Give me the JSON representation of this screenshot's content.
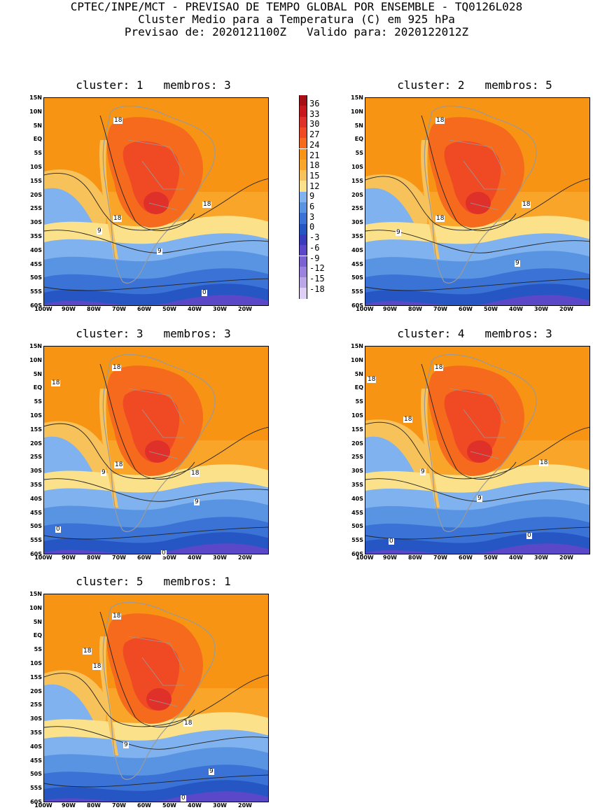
{
  "header": {
    "line1": "CPTEC/INPE/MCT - PREVISAO DE TEMPO GLOBAL POR ENSEMBLE - TQ0126L028",
    "line2": "Cluster Medio para a Temperatura (C) em 925 hPa",
    "line3": "Previsao de: 2020121100Z   Valido para: 2020122012Z"
  },
  "lat_labels": [
    "15N",
    "10N",
    "5N",
    "EQ",
    "5S",
    "10S",
    "15S",
    "20S",
    "25S",
    "30S",
    "35S",
    "40S",
    "45S",
    "50S",
    "55S",
    "60S"
  ],
  "lon_labels": [
    "100W",
    "90W",
    "80W",
    "70W",
    "60W",
    "50W",
    "40W",
    "30W",
    "20W"
  ],
  "colorbar": {
    "labels": [
      "36",
      "33",
      "30",
      "27",
      "24",
      "21",
      "18",
      "15",
      "12",
      "9",
      "6",
      "3",
      "0",
      "-3",
      "-6",
      "-9",
      "-12",
      "-15",
      "-18"
    ],
    "colors": [
      "#a50f15",
      "#c8181e",
      "#e0302a",
      "#f04a24",
      "#f56a1c",
      "#f79414",
      "#f9a52a",
      "#f8c25a",
      "#fbe18a",
      "#7fb2ee",
      "#5894e2",
      "#3a72d6",
      "#2556c4",
      "#3b3bc0",
      "#5a48c8",
      "#7a62d2",
      "#9a82de",
      "#bba6e8",
      "#ddd0f4"
    ]
  },
  "panels": [
    {
      "title": "cluster: 1   membros: 3",
      "labels": [
        "18",
        "18",
        "18",
        "9",
        "9",
        "0"
      ]
    },
    {
      "title": "cluster: 2   membros: 5",
      "labels": [
        "18",
        "18",
        "18",
        "9",
        "9"
      ]
    },
    {
      "title": "cluster: 3   membros: 3",
      "labels": [
        "18",
        "18",
        "18",
        "18",
        "9",
        "9",
        "0",
        "0"
      ]
    },
    {
      "title": "cluster: 4   membros: 3",
      "labels": [
        "18",
        "18",
        "18",
        "18",
        "9",
        "9",
        "0",
        "0"
      ]
    },
    {
      "title": "cluster: 5   membros: 1",
      "labels": [
        "18",
        "18",
        "18",
        "18",
        "9",
        "9",
        "0"
      ]
    }
  ]
}
